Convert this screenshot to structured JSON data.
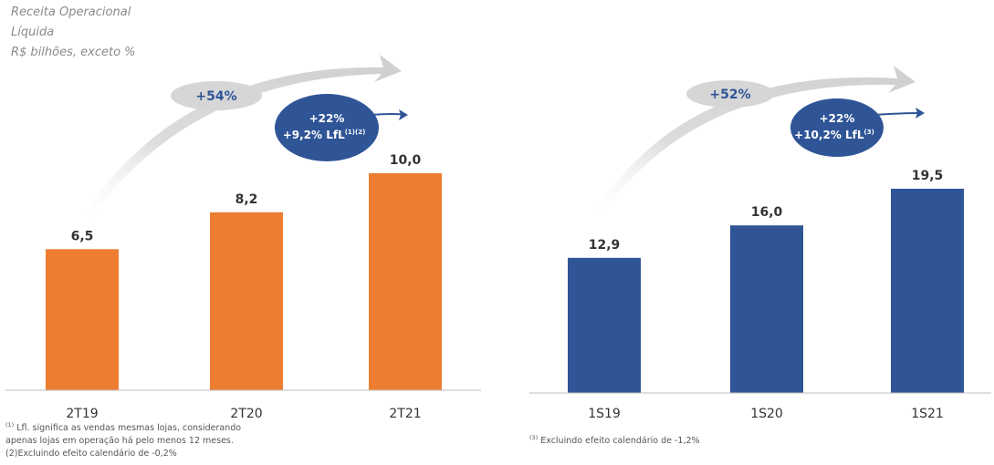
{
  "header": {
    "line1": "Receita Operacional",
    "line2": "Líquida",
    "line3": "R$ bilhões, exceto %"
  },
  "colors": {
    "orange": "#ED7D31",
    "blue": "#2F5597",
    "grey_arrow": "#d9d9d9",
    "axis": "#bfbfbf",
    "text": "#333333"
  },
  "chart_data": [
    {
      "type": "bar",
      "categories": [
        "2T19",
        "2T20",
        "2T21"
      ],
      "values": [
        6.5,
        8.2,
        10.0
      ],
      "value_labels": [
        "6,5",
        "8,2",
        "10,0"
      ],
      "ylim": [
        0,
        10.6
      ],
      "bar_color": "#ED7D31",
      "annotations": {
        "growth_badge": "+54%",
        "bubble_line1": "+22%",
        "bubble_line2": "+9,2% LfL",
        "bubble_sup": "(1)(2)"
      }
    },
    {
      "type": "bar",
      "categories": [
        "1S19",
        "1S20",
        "1S21"
      ],
      "values": [
        12.9,
        16.0,
        19.5
      ],
      "value_labels": [
        "12,9",
        "16,0",
        "19,5"
      ],
      "ylim": [
        0,
        21.0
      ],
      "bar_color": "#2F5597",
      "annotations": {
        "growth_badge": "+52%",
        "bubble_line1": "+22%",
        "bubble_line2": "+10,2% LfL",
        "bubble_sup": "(3)"
      }
    }
  ],
  "footnotes": {
    "left_line1_sup": "(1)",
    "left_line1": " Lfl. significa as vendas mesmas lojas, considerando",
    "left_line2": "apenas lojas em operação há pelo menos 12 meses.",
    "left_line3": "(2)Excluindo efeito calendário de -0,2%",
    "right_sup": "(3)",
    "right_line": " Excluindo efeito calendário de -1,2%"
  }
}
